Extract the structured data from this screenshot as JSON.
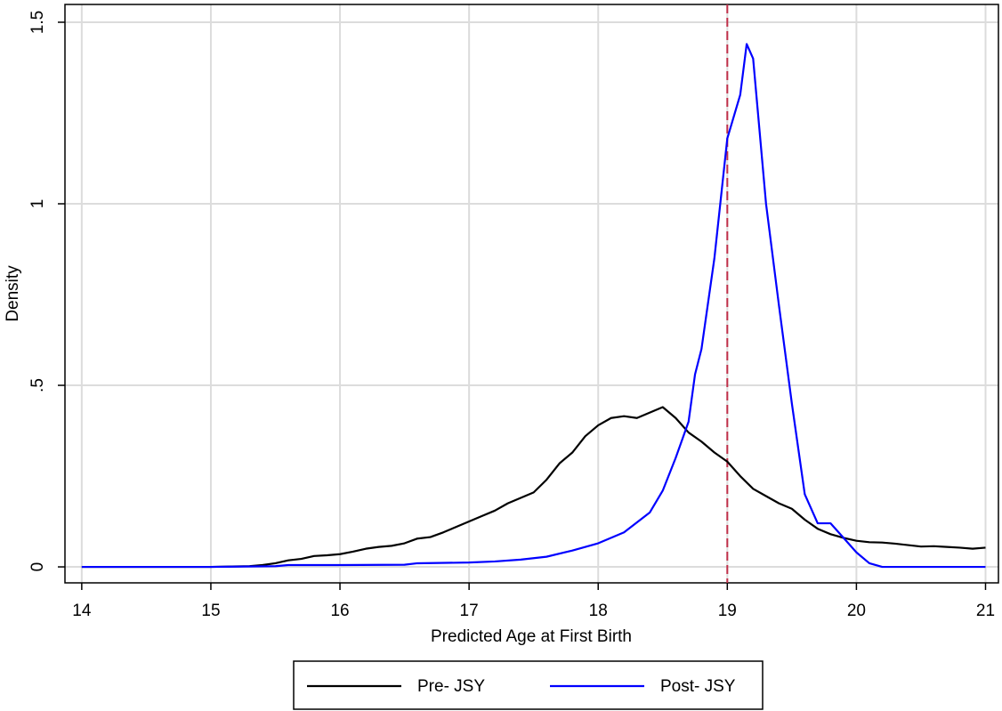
{
  "chart_data": {
    "type": "line",
    "x_label": "Predicted Age at First Birth",
    "y_label": "Density",
    "xlim": [
      13.87,
      21.1
    ],
    "ylim": [
      -0.044,
      1.549
    ],
    "xticks": [
      14,
      15,
      16,
      17,
      18,
      19,
      20,
      21
    ],
    "yticks": [
      0,
      {
        "value": 0.5,
        "label": ".5"
      },
      1,
      1.5
    ],
    "grid": true,
    "reference_line": {
      "x": 19,
      "color": "#c0304a"
    },
    "legend": "bottom",
    "series": [
      {
        "name": "Pre- JSY",
        "color": "#000000",
        "x": [
          14,
          14.5,
          15,
          15.3,
          15.4,
          15.5,
          15.6,
          15.7,
          15.8,
          15.9,
          16,
          16.1,
          16.2,
          16.3,
          16.4,
          16.5,
          16.6,
          16.7,
          16.8,
          16.9,
          17,
          17.1,
          17.2,
          17.3,
          17.4,
          17.5,
          17.6,
          17.7,
          17.8,
          17.9,
          18,
          18.1,
          18.2,
          18.3,
          18.4,
          18.5,
          18.6,
          18.7,
          18.8,
          18.9,
          19,
          19.1,
          19.2,
          19.3,
          19.4,
          19.5,
          19.6,
          19.7,
          19.8,
          19.9,
          20,
          20.1,
          20.2,
          20.3,
          20.4,
          20.5,
          20.6,
          20.7,
          20.8,
          20.9,
          21
        ],
        "values": [
          0,
          0,
          0,
          0.002,
          0.005,
          0.01,
          0.018,
          0.022,
          0.03,
          0.032,
          0.035,
          0.042,
          0.05,
          0.055,
          0.058,
          0.065,
          0.078,
          0.082,
          0.095,
          0.11,
          0.125,
          0.14,
          0.155,
          0.175,
          0.19,
          0.205,
          0.24,
          0.285,
          0.315,
          0.36,
          0.39,
          0.41,
          0.415,
          0.41,
          0.425,
          0.44,
          0.41,
          0.37,
          0.345,
          0.315,
          0.29,
          0.25,
          0.215,
          0.195,
          0.175,
          0.16,
          0.13,
          0.105,
          0.09,
          0.08,
          0.072,
          0.068,
          0.067,
          0.064,
          0.06,
          0.056,
          0.057,
          0.055,
          0.053,
          0.05,
          0.053
        ]
      },
      {
        "name": "Post- JSY",
        "color": "#0000ff",
        "x": [
          14,
          14.5,
          15,
          15.5,
          15.6,
          16,
          16.5,
          16.6,
          17,
          17.2,
          17.4,
          17.6,
          17.8,
          18,
          18.2,
          18.4,
          18.5,
          18.6,
          18.7,
          18.75,
          18.8,
          18.9,
          19,
          19.1,
          19.15,
          19.2,
          19.3,
          19.4,
          19.5,
          19.6,
          19.7,
          19.8,
          19.9,
          20,
          20.1,
          20.2,
          21
        ],
        "values": [
          0,
          0,
          0,
          0.002,
          0.005,
          0.005,
          0.006,
          0.01,
          0.012,
          0.015,
          0.02,
          0.028,
          0.045,
          0.065,
          0.095,
          0.15,
          0.21,
          0.3,
          0.4,
          0.53,
          0.6,
          0.85,
          1.18,
          1.3,
          1.44,
          1.4,
          1.0,
          0.72,
          0.45,
          0.2,
          0.12,
          0.12,
          0.08,
          0.04,
          0.01,
          0,
          0
        ]
      }
    ]
  }
}
